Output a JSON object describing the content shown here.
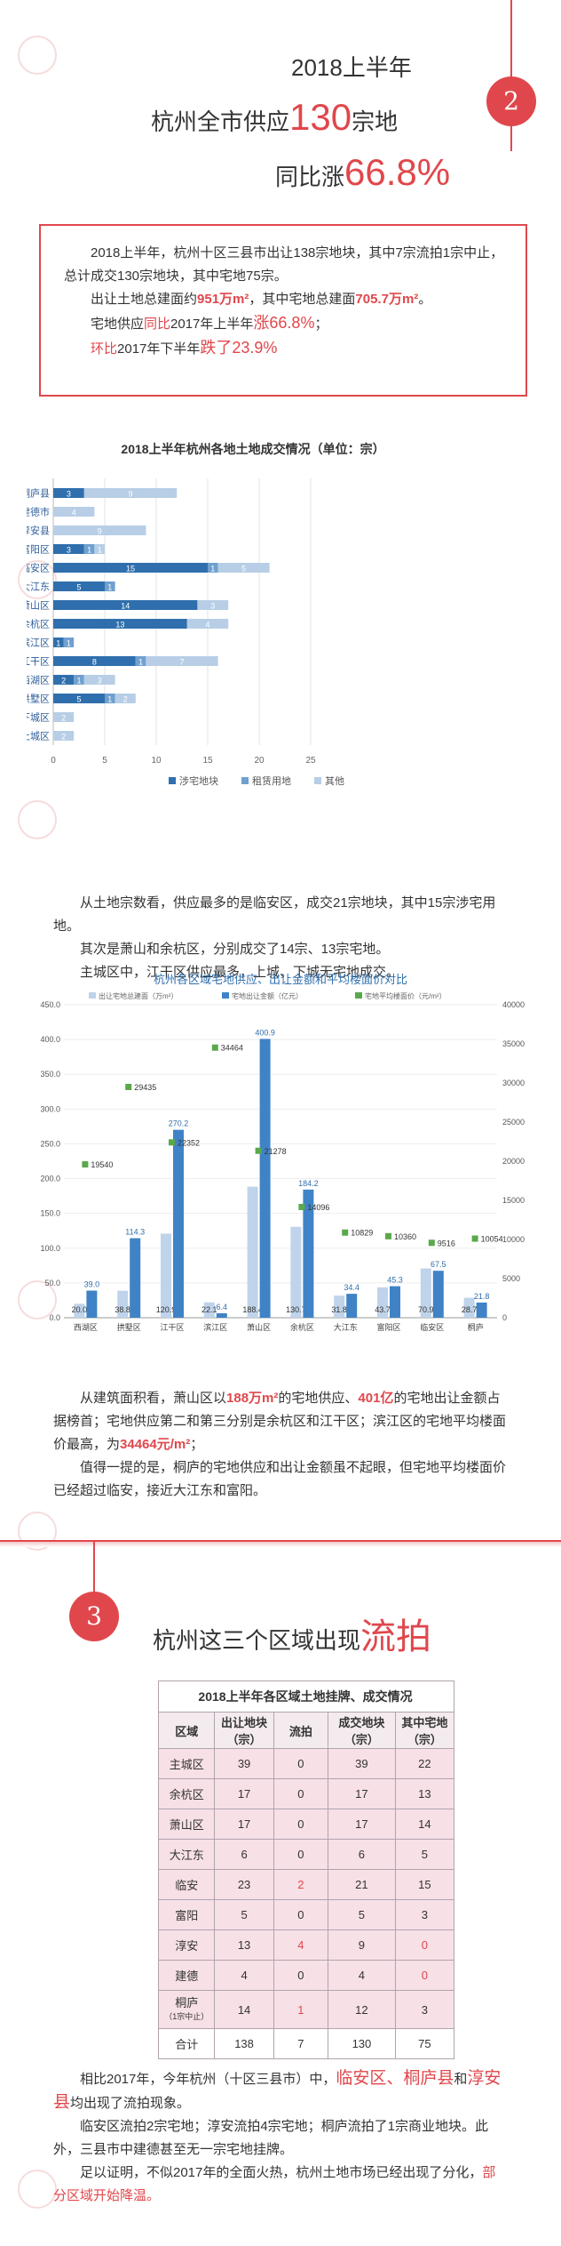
{
  "section2": {
    "badge": "2",
    "title1": "2018上半年",
    "title2_pre": "杭州全市供应",
    "title2_num": "130",
    "title2_post": "宗地",
    "title3_pre": "同比涨",
    "title3_num": "66.8%",
    "summary_p1": "2018上半年，杭州十区三县市出让138宗地块，其中7宗流拍1宗中止，总计成交130宗地块，其中宅地75宗。",
    "summary_p2_pre": "出让土地总建面约",
    "summary_p2_num1": "951万m²",
    "summary_p2_mid": "，其中宅地总建面",
    "summary_p2_num2": "705.7万m²",
    "summary_p2_post": "。",
    "summary_p3_pre": "宅地供应",
    "summary_p3_a": "同比",
    "summary_p3_b": "2017年上半年",
    "summary_p3_c": "涨66.8%",
    "summary_p3_post": "；",
    "summary_p4_a": "环比",
    "summary_p4_b": "2017年下半年",
    "summary_p4_c": "跌了23.9%"
  },
  "bar_chart": {
    "chart_data": {
      "type": "bar",
      "orientation": "horizontal",
      "title": "2018上半年杭州各地土地成交情况（单位：宗）",
      "categories": [
        "桐庐县",
        "建德市",
        "淳安县",
        "富阳区",
        "临安区",
        "大江东",
        "萧山区",
        "余杭区",
        "滨江区",
        "江干区",
        "西湖区",
        "拱墅区",
        "下城区",
        "上城区"
      ],
      "series": [
        {
          "name": "涉宅地块",
          "color": "#2f6fad",
          "values": [
            3,
            0,
            0,
            3,
            15,
            5,
            14,
            13,
            1,
            8,
            2,
            5,
            0,
            0
          ]
        },
        {
          "name": "租赁用地",
          "color": "#6fa0cf",
          "values": [
            0,
            0,
            0,
            1,
            1,
            1,
            0,
            0,
            1,
            1,
            1,
            1,
            0,
            0
          ]
        },
        {
          "name": "其他",
          "color": "#b7cee6",
          "values": [
            9,
            4,
            9,
            1,
            5,
            0,
            3,
            4,
            0,
            7,
            3,
            2,
            2,
            2
          ]
        }
      ],
      "xlim": [
        0,
        25
      ],
      "xticks": [
        0,
        5,
        10,
        15,
        20,
        25
      ]
    },
    "note": ""
  },
  "text2": {
    "p1": "从土地宗数看，供应最多的是临安区，成交21宗地块，其中15宗涉宅用地。",
    "p2": "其次是萧山和余杭区，分别成交了14宗、13宗宅地。",
    "p3": "主城区中，江干区供应最多，上城、下城无宅地成交。"
  },
  "combo_chart": {
    "chart_data": {
      "type": "bar",
      "title": "杭州各区域宅地供应、出让金额和平均楼面价对比",
      "categories": [
        "西湖区",
        "拱墅区",
        "江干区",
        "滨江区",
        "萧山区",
        "余杭区",
        "大江东",
        "富阳区",
        "临安区",
        "桐庐"
      ],
      "series": [
        {
          "name": "出让宅地总建面（万m²）",
          "color": "#bfd3ea",
          "axis": "left",
          "values": [
            20.0,
            38.8,
            120.9,
            22.1,
            188.4,
            130.7,
            31.8,
            43.7,
            70.9,
            28.7
          ]
        },
        {
          "name": "宅地出让金额（亿元）",
          "color": "#3f83c6",
          "axis": "left",
          "values": [
            39.0,
            114.3,
            270.2,
            6.4,
            400.9,
            184.2,
            34.4,
            45.3,
            67.5,
            21.8
          ]
        },
        {
          "name": "宅地平均楼面价（元/m²）",
          "color": "#5aa84a",
          "axis": "right",
          "type": "scatter",
          "values": [
            19540,
            29435,
            22352,
            34464,
            21278,
            14096,
            10829,
            10360,
            9516,
            10054
          ]
        }
      ],
      "ylim_left": [
        0,
        450
      ],
      "yticks_left": [
        "0.0",
        "50.0",
        "100.0",
        "150.0",
        "200.0",
        "250.0",
        "300.0",
        "350.0",
        "400.0",
        "450.0"
      ],
      "ylim_right": [
        0,
        40000
      ],
      "yticks_right": [
        "0",
        "5000",
        "10000",
        "15000",
        "20000",
        "25000",
        "30000",
        "35000",
        "40000"
      ]
    },
    "note": ""
  },
  "text3": {
    "p1_a": "从建筑面积看，萧山区以",
    "p1_b": "188万m²",
    "p1_c": "的宅地供应、",
    "p1_d": "401亿",
    "p1_e": "的宅地出让金额占据榜首；宅地供应第二和第三分别是余杭区和江干区；滨江区的宅地平均楼面价最高，为",
    "p1_f": "34464元/m²",
    "p1_g": "；",
    "p2": "值得一提的是，桐庐的宅地供应和出让金额虽不起眼，但宅地平均楼面价已经超过临安，接近大江东和富阳。"
  },
  "section3": {
    "badge": "3",
    "title_pre": "杭州这三个区域出现",
    "title_hl": "流拍"
  },
  "table": {
    "title": "2018上半年各区域土地挂牌、成交情况",
    "headers": [
      "区域",
      "出让地块（宗）",
      "流拍",
      "成交地块（宗）",
      "其中宅地（宗）"
    ],
    "rows": [
      [
        "主城区",
        "39",
        "0",
        "39",
        "22"
      ],
      [
        "余杭区",
        "17",
        "0",
        "17",
        "13"
      ],
      [
        "萧山区",
        "17",
        "0",
        "17",
        "14"
      ],
      [
        "大江东",
        "6",
        "0",
        "6",
        "5"
      ],
      [
        "临安",
        "23",
        "2",
        "21",
        "15"
      ],
      [
        "富阳",
        "5",
        "0",
        "5",
        "3"
      ],
      [
        "淳安",
        "13",
        "4",
        "9",
        "0"
      ],
      [
        "建德",
        "4",
        "0",
        "4",
        "0"
      ],
      [
        "桐庐",
        "14",
        "1",
        "12",
        "3"
      ],
      [
        "合计",
        "138",
        "7",
        "130",
        "75"
      ]
    ],
    "tonglu_sub": "（1宗中止）"
  },
  "text4": {
    "p1_a": "相比2017年，今年杭州（十区三县市）中，",
    "p1_b": "临安区、桐庐县",
    "p1_c": "和",
    "p1_d": "淳安县",
    "p1_e": "均出现了流拍现象。",
    "p2": "临安区流拍2宗宅地；淳安流拍4宗宅地；桐庐流拍了1宗商业地块。此外，三县市中建德甚至无一宗宅地挂牌。",
    "p3_a": "足以证明，不似2017年的全面火热，杭州土地市场已经出现了分化，",
    "p3_b": "部分区域开始降温。"
  }
}
